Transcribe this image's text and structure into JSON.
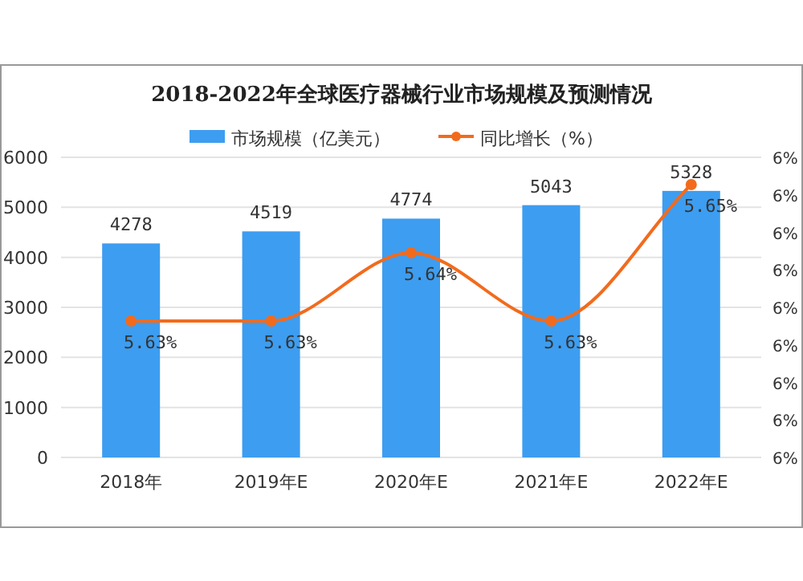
{
  "chart_data": {
    "type": "bar",
    "title": "2018-2022年全球医疗器械行业市场规模及预测情况",
    "categories": [
      "2018年",
      "2019年E",
      "2020年E",
      "2021年E",
      "2022年E"
    ],
    "series": [
      {
        "name": "市场规模（亿美元）",
        "color": "#3d9df0",
        "values": [
          4278,
          4519,
          4774,
          5043,
          5328
        ],
        "value_labels": [
          "4278",
          "4519",
          "4774",
          "5043",
          "5328"
        ]
      },
      {
        "name": "同比增长（%）",
        "type": "line",
        "axis": "y2",
        "color": "#f26b1d",
        "values": [
          5.63,
          5.63,
          5.64,
          5.63,
          5.65
        ],
        "value_labels": [
          "5.63%",
          "5.63%",
          "5.64%",
          "5.63%",
          "5.65%"
        ]
      }
    ],
    "ylim": [
      0,
      6000
    ],
    "yticks": [
      0,
      1000,
      2000,
      3000,
      4000,
      5000,
      6000
    ],
    "y2lim": [
      5.61,
      5.654
    ],
    "y2ticks": [
      {
        "value": 5.61,
        "label": "6%"
      },
      {
        "value": 5.6155,
        "label": "6%"
      },
      {
        "value": 5.621,
        "label": "6%"
      },
      {
        "value": 5.6265,
        "label": "6%"
      },
      {
        "value": 5.632,
        "label": "6%"
      },
      {
        "value": 5.6375,
        "label": "6%"
      },
      {
        "value": 5.643,
        "label": "6%"
      },
      {
        "value": 5.6485,
        "label": "6%"
      },
      {
        "value": 5.654,
        "label": "6%"
      }
    ],
    "grid": "y",
    "legend": "top",
    "marker": "circle"
  }
}
